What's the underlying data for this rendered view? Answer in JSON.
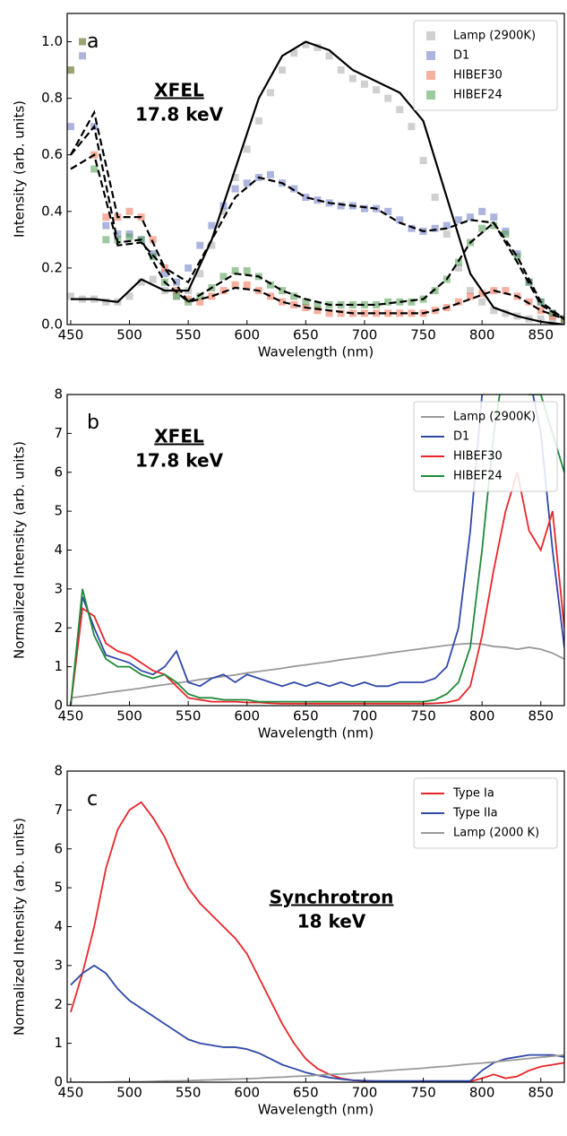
{
  "chart_data": [
    {
      "type": "scatter",
      "panel_label": "a",
      "annotation": [
        "XFEL",
        "17.8 keV"
      ],
      "xlabel": "Wavelength (nm)",
      "ylabel": "Intensity (arb. units)",
      "xlim": [
        447,
        870
      ],
      "ylim": [
        0,
        1.1
      ],
      "xticks": [
        450,
        500,
        550,
        600,
        650,
        700,
        750,
        800,
        850
      ],
      "yticks": [
        {
          "value": 0,
          "label": "0.0"
        },
        0.2,
        0.4,
        0.6,
        0.8,
        {
          "value": 1,
          "label": "1.0"
        }
      ],
      "legend": "upper right",
      "x": [
        450,
        460,
        470,
        480,
        490,
        500,
        510,
        520,
        530,
        540,
        550,
        560,
        570,
        580,
        590,
        600,
        610,
        620,
        630,
        640,
        650,
        660,
        670,
        680,
        690,
        700,
        710,
        720,
        730,
        740,
        750,
        760,
        770,
        780,
        790,
        800,
        810,
        820,
        830,
        840,
        850,
        860,
        870
      ],
      "series": [
        {
          "name": "Lamp (2900K)",
          "color": "#aaaaaa",
          "values": [
            0.1,
            0.09,
            0.09,
            0.08,
            0.08,
            0.1,
            0.15,
            0.16,
            0.12,
            0.1,
            0.12,
            0.18,
            0.28,
            0.4,
            0.52,
            0.62,
            0.72,
            0.82,
            0.9,
            0.96,
            0.99,
            0.98,
            0.95,
            0.9,
            0.87,
            0.85,
            0.83,
            0.8,
            0.76,
            0.7,
            0.58,
            0.45,
            0.32,
            0.2,
            0.12,
            0.08,
            0.05,
            0.04,
            0.03,
            0.02,
            0.02,
            0.01,
            0.01
          ]
        },
        {
          "name": "D1",
          "color": "#6a78c4",
          "values": [
            0.7,
            0.95,
            0.7,
            0.35,
            0.32,
            0.32,
            0.3,
            0.25,
            0.18,
            0.15,
            0.2,
            0.28,
            0.35,
            0.42,
            0.48,
            0.5,
            0.52,
            0.53,
            0.5,
            0.48,
            0.45,
            0.44,
            0.43,
            0.42,
            0.42,
            0.41,
            0.41,
            0.4,
            0.37,
            0.34,
            0.33,
            0.34,
            0.35,
            0.37,
            0.38,
            0.4,
            0.38,
            0.33,
            0.25,
            0.15,
            0.08,
            0.04,
            0.02
          ]
        },
        {
          "name": "HIBEF30",
          "color": "#f07050",
          "values": [
            0.9,
            1.0,
            0.6,
            0.38,
            0.38,
            0.4,
            0.38,
            0.3,
            0.2,
            0.12,
            0.09,
            0.08,
            0.1,
            0.12,
            0.14,
            0.14,
            0.12,
            0.1,
            0.08,
            0.07,
            0.06,
            0.05,
            0.04,
            0.04,
            0.04,
            0.04,
            0.04,
            0.04,
            0.04,
            0.04,
            0.04,
            0.05,
            0.06,
            0.08,
            0.1,
            0.11,
            0.12,
            0.12,
            0.1,
            0.08,
            0.05,
            0.03,
            0.02
          ]
        },
        {
          "name": "HIBEF24",
          "color": "#4f9a4f",
          "values": [
            0.9,
            1.0,
            0.55,
            0.3,
            0.3,
            0.31,
            0.3,
            0.24,
            0.15,
            0.1,
            0.08,
            0.1,
            0.13,
            0.17,
            0.19,
            0.19,
            0.17,
            0.14,
            0.12,
            0.1,
            0.08,
            0.07,
            0.07,
            0.07,
            0.07,
            0.07,
            0.07,
            0.08,
            0.08,
            0.08,
            0.09,
            0.12,
            0.16,
            0.22,
            0.29,
            0.34,
            0.35,
            0.32,
            0.24,
            0.15,
            0.08,
            0.04,
            0.02
          ]
        }
      ],
      "fit_x": [
        450,
        470,
        490,
        510,
        530,
        550,
        570,
        590,
        610,
        630,
        650,
        670,
        690,
        710,
        730,
        750,
        770,
        790,
        810,
        830,
        850,
        870
      ],
      "fits": [
        {
          "color": "#000000",
          "style": "solid",
          "values": [
            0.09,
            0.09,
            0.08,
            0.16,
            0.12,
            0.12,
            0.3,
            0.55,
            0.8,
            0.95,
            1.0,
            0.97,
            0.9,
            0.86,
            0.82,
            0.72,
            0.45,
            0.18,
            0.06,
            0.03,
            0.01,
            0
          ]
        },
        {
          "color": "#000000",
          "style": "dashed",
          "values": [
            0.55,
            0.6,
            0.28,
            0.29,
            0.2,
            0.15,
            0.3,
            0.45,
            0.52,
            0.5,
            0.45,
            0.43,
            0.42,
            0.41,
            0.36,
            0.33,
            0.34,
            0.37,
            0.36,
            0.22,
            0.07,
            0.02
          ]
        },
        {
          "color": "#000000",
          "style": "dashed",
          "values": [
            0.6,
            0.75,
            0.38,
            0.38,
            0.2,
            0.08,
            0.1,
            0.13,
            0.12,
            0.08,
            0.06,
            0.05,
            0.04,
            0.04,
            0.04,
            0.04,
            0.06,
            0.09,
            0.12,
            0.1,
            0.05,
            0.02
          ]
        },
        {
          "color": "#000000",
          "style": "dashed",
          "values": [
            0.6,
            0.7,
            0.29,
            0.3,
            0.15,
            0.08,
            0.13,
            0.18,
            0.17,
            0.12,
            0.09,
            0.07,
            0.07,
            0.07,
            0.08,
            0.09,
            0.16,
            0.29,
            0.36,
            0.24,
            0.08,
            0.02
          ]
        }
      ]
    },
    {
      "type": "line",
      "panel_label": "b",
      "annotation": [
        "XFEL",
        "17.8 keV"
      ],
      "xlabel": "Wavelength (nm)",
      "ylabel": "Normalized Intensity (arb. units)",
      "xlim": [
        447,
        870
      ],
      "ylim": [
        0,
        8
      ],
      "xticks": [
        450,
        500,
        550,
        600,
        650,
        700,
        750,
        800,
        850
      ],
      "yticks": [
        0,
        1,
        2,
        3,
        4,
        5,
        6,
        7,
        8
      ],
      "legend": "upper right",
      "x": [
        450,
        460,
        470,
        480,
        490,
        500,
        510,
        520,
        530,
        540,
        550,
        560,
        570,
        580,
        590,
        600,
        610,
        620,
        630,
        640,
        650,
        660,
        670,
        680,
        690,
        700,
        710,
        720,
        730,
        740,
        750,
        760,
        770,
        780,
        790,
        800,
        810,
        820,
        830,
        840,
        850,
        860,
        870
      ],
      "series": [
        {
          "name": "Lamp (2900K)",
          "color": "#999999",
          "values": [
            0.2,
            0.24,
            0.28,
            0.33,
            0.37,
            0.41,
            0.45,
            0.5,
            0.54,
            0.58,
            0.62,
            0.67,
            0.71,
            0.75,
            0.79,
            0.84,
            0.88,
            0.92,
            0.96,
            1.01,
            1.05,
            1.09,
            1.13,
            1.18,
            1.22,
            1.26,
            1.3,
            1.35,
            1.39,
            1.43,
            1.47,
            1.51,
            1.55,
            1.58,
            1.6,
            1.58,
            1.52,
            1.5,
            1.45,
            1.5,
            1.45,
            1.35,
            1.2
          ]
        },
        {
          "name": "D1",
          "color": "#2f48a8",
          "values": [
            0,
            2.8,
            2.0,
            1.3,
            1.2,
            1.1,
            0.9,
            0.8,
            1.0,
            1.4,
            0.6,
            0.5,
            0.7,
            0.8,
            0.6,
            0.8,
            0.7,
            0.6,
            0.5,
            0.6,
            0.5,
            0.6,
            0.5,
            0.6,
            0.5,
            0.6,
            0.5,
            0.5,
            0.6,
            0.6,
            0.6,
            0.7,
            1.0,
            2.0,
            4.5,
            8,
            8.5,
            9,
            9,
            8.5,
            7,
            4,
            1.5
          ]
        },
        {
          "name": "HIBEF30",
          "color": "#e8262a",
          "values": [
            0,
            2.5,
            2.3,
            1.6,
            1.4,
            1.3,
            1.1,
            0.9,
            0.8,
            0.5,
            0.2,
            0.15,
            0.1,
            0.1,
            0.1,
            0.08,
            0.08,
            0.06,
            0.05,
            0.05,
            0.05,
            0.05,
            0.05,
            0.05,
            0.05,
            0.05,
            0.05,
            0.05,
            0.05,
            0.05,
            0.05,
            0.06,
            0.08,
            0.15,
            0.5,
            1.8,
            3.5,
            5,
            6,
            4.5,
            4,
            5,
            2
          ]
        },
        {
          "name": "HIBEF24",
          "color": "#1f8a3a",
          "values": [
            0,
            3.0,
            1.8,
            1.2,
            1.0,
            1.0,
            0.8,
            0.7,
            0.8,
            0.6,
            0.3,
            0.2,
            0.2,
            0.15,
            0.15,
            0.15,
            0.1,
            0.1,
            0.1,
            0.1,
            0.1,
            0.1,
            0.1,
            0.1,
            0.1,
            0.1,
            0.1,
            0.1,
            0.1,
            0.1,
            0.1,
            0.15,
            0.3,
            0.6,
            1.5,
            4,
            7,
            9,
            9,
            8,
            8,
            7,
            6
          ]
        }
      ]
    },
    {
      "type": "line",
      "panel_label": "c",
      "annotation": [
        "Synchrotron",
        "18 keV"
      ],
      "xlabel": "Wavelength (nm)",
      "ylabel": "Normalized Intensity (arb. units)",
      "xlim": [
        447,
        870
      ],
      "ylim": [
        0,
        8
      ],
      "xticks": [
        450,
        500,
        550,
        600,
        650,
        700,
        750,
        800,
        850
      ],
      "yticks": [
        0,
        1,
        2,
        3,
        4,
        5,
        6,
        7,
        8
      ],
      "legend": "upper right",
      "x": [
        450,
        460,
        470,
        480,
        490,
        500,
        510,
        520,
        530,
        540,
        550,
        560,
        570,
        580,
        590,
        600,
        610,
        620,
        630,
        640,
        650,
        660,
        670,
        680,
        690,
        700,
        710,
        720,
        730,
        740,
        750,
        760,
        770,
        780,
        790,
        800,
        810,
        820,
        830,
        840,
        850,
        860,
        870
      ],
      "series": [
        {
          "name": "Type Ia",
          "color": "#e8262a",
          "values": [
            1.8,
            2.8,
            4,
            5.5,
            6.5,
            7,
            7.2,
            6.8,
            6.3,
            5.6,
            5,
            4.6,
            4.3,
            4.0,
            3.7,
            3.3,
            2.7,
            2.1,
            1.5,
            1.0,
            0.6,
            0.35,
            0.2,
            0.1,
            0.05,
            0.03,
            0.02,
            0.02,
            0.02,
            0.02,
            0.02,
            0.02,
            0.02,
            0.02,
            0.02,
            0.1,
            0.2,
            0.1,
            0.15,
            0.3,
            0.4,
            0.45,
            0.5
          ]
        },
        {
          "name": "Type IIa",
          "color": "#2f48a8",
          "values": [
            2.5,
            2.8,
            3.0,
            2.8,
            2.4,
            2.1,
            1.9,
            1.7,
            1.5,
            1.3,
            1.1,
            1.0,
            0.95,
            0.9,
            0.9,
            0.85,
            0.75,
            0.6,
            0.45,
            0.35,
            0.25,
            0.18,
            0.12,
            0.08,
            0.05,
            0.04,
            0.03,
            0.03,
            0.03,
            0.03,
            0.03,
            0.03,
            0.03,
            0.03,
            0.03,
            0.3,
            0.5,
            0.6,
            0.65,
            0.7,
            0.7,
            0.7,
            0.65
          ]
        },
        {
          "name": "Lamp (2000 K)",
          "color": "#999999",
          "values": [
            0,
            0,
            0,
            0,
            0.01,
            0.01,
            0.01,
            0.02,
            0.03,
            0.03,
            0.04,
            0.05,
            0.06,
            0.07,
            0.08,
            0.09,
            0.1,
            0.12,
            0.13,
            0.15,
            0.16,
            0.18,
            0.2,
            0.21,
            0.23,
            0.25,
            0.27,
            0.3,
            0.32,
            0.34,
            0.36,
            0.39,
            0.41,
            0.44,
            0.47,
            0.49,
            0.52,
            0.55,
            0.58,
            0.61,
            0.64,
            0.67,
            0.7
          ]
        }
      ]
    }
  ]
}
